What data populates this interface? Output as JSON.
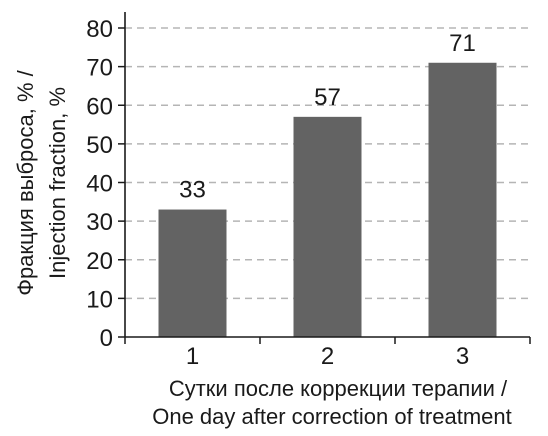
{
  "chart_data": {
    "type": "bar",
    "categories": [
      "1",
      "2",
      "3"
    ],
    "values": [
      33,
      57,
      71
    ],
    "data_labels": [
      "33",
      "57",
      "71"
    ],
    "xlabel_line1": "Сутки после коррекции терапии /",
    "xlabel_line2": "One day after correction of treatment",
    "ylabel_line1": "Фракция выброса, % /",
    "ylabel_line2": "Injection fraction, %",
    "ylim": [
      0,
      80
    ],
    "yticks": [
      "0",
      "10",
      "20",
      "30",
      "40",
      "50",
      "60",
      "70",
      "80"
    ],
    "grid": true,
    "bar_color": "#636363",
    "grid_color": "#b5b5b5",
    "axis_color": "#1a1a1a"
  }
}
